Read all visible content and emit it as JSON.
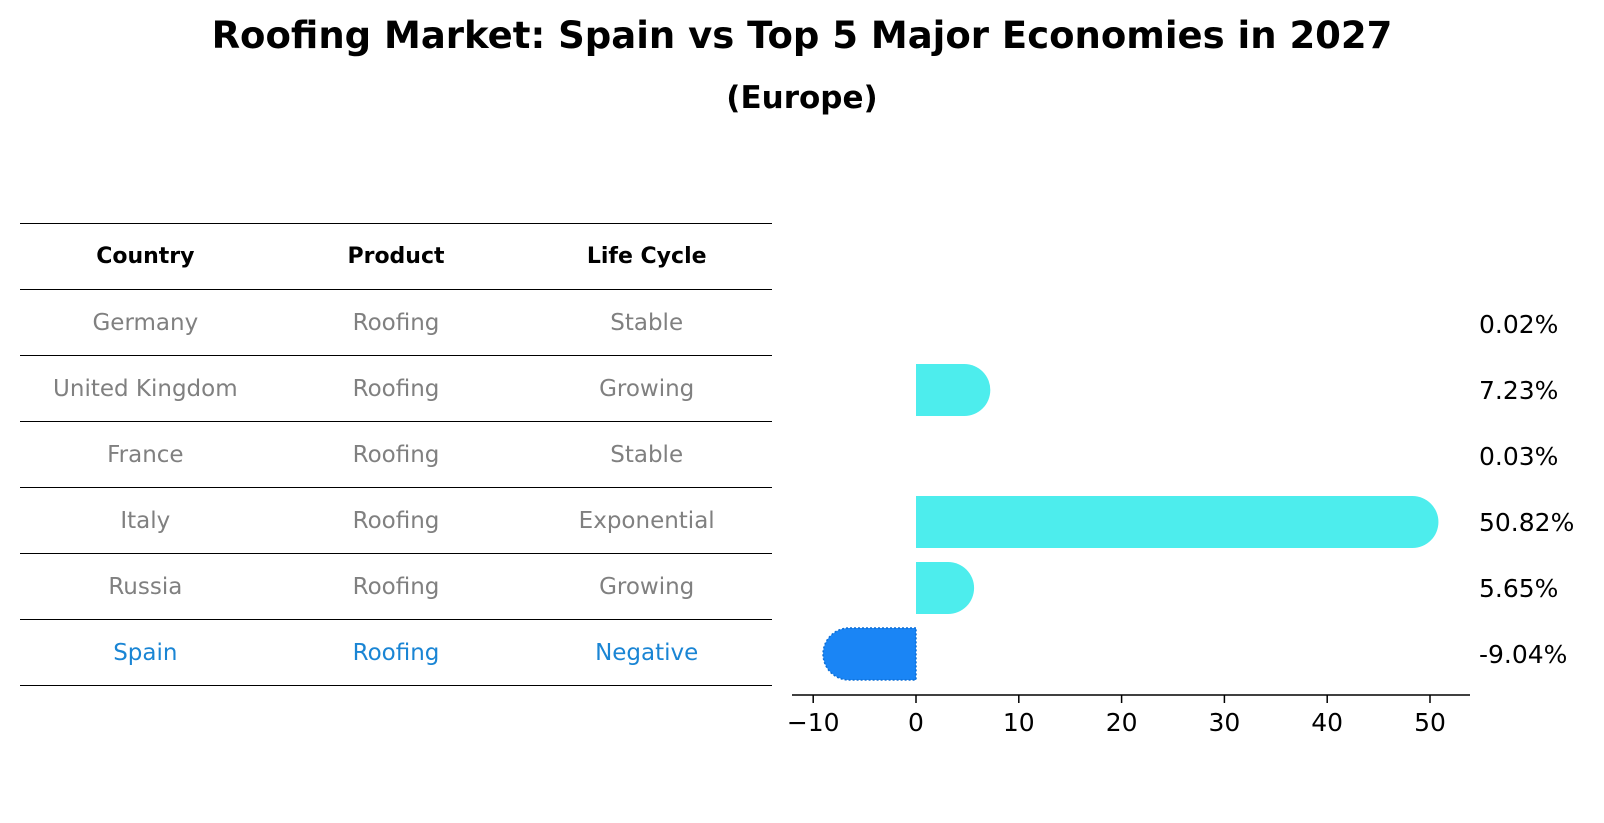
{
  "title": "Roofing Market: Spain vs Top 5 Major Economies in 2027",
  "subtitle": "(Europe)",
  "table": {
    "headers": [
      "Country",
      "Product",
      "Life Cycle"
    ],
    "rows": [
      {
        "country": "Germany",
        "product": "Roofing",
        "life_cycle": "Stable"
      },
      {
        "country": "United Kingdom",
        "product": "Roofing",
        "life_cycle": "Growing"
      },
      {
        "country": "France",
        "product": "Roofing",
        "life_cycle": "Stable"
      },
      {
        "country": "Italy",
        "product": "Roofing",
        "life_cycle": "Exponential"
      },
      {
        "country": "Russia",
        "product": "Roofing",
        "life_cycle": "Growing"
      },
      {
        "country": "Spain",
        "product": "Roofing",
        "life_cycle": "Negative"
      }
    ]
  },
  "colors": {
    "positive_bar": "#4deded",
    "negative_bar": "#1a85f5",
    "highlight_text": "#1a85d4",
    "muted_text": "#808080"
  },
  "chart_data": {
    "type": "bar",
    "orientation": "horizontal",
    "categories": [
      "Germany",
      "United Kingdom",
      "France",
      "Italy",
      "Russia",
      "Spain"
    ],
    "values": [
      0.02,
      7.23,
      0.03,
      50.82,
      5.65,
      -9.04
    ],
    "value_labels": [
      "0.02%",
      "7.23%",
      "0.03%",
      "50.82%",
      "5.65%",
      "-9.04%"
    ],
    "highlight": "Spain",
    "xlim": [
      -12,
      54
    ],
    "xticks": [
      -10,
      0,
      10,
      20,
      30,
      40,
      50
    ],
    "xtick_labels": [
      "−10",
      "0",
      "10",
      "20",
      "30",
      "40",
      "50"
    ],
    "xlabel": "",
    "ylabel": "",
    "grid": false
  }
}
